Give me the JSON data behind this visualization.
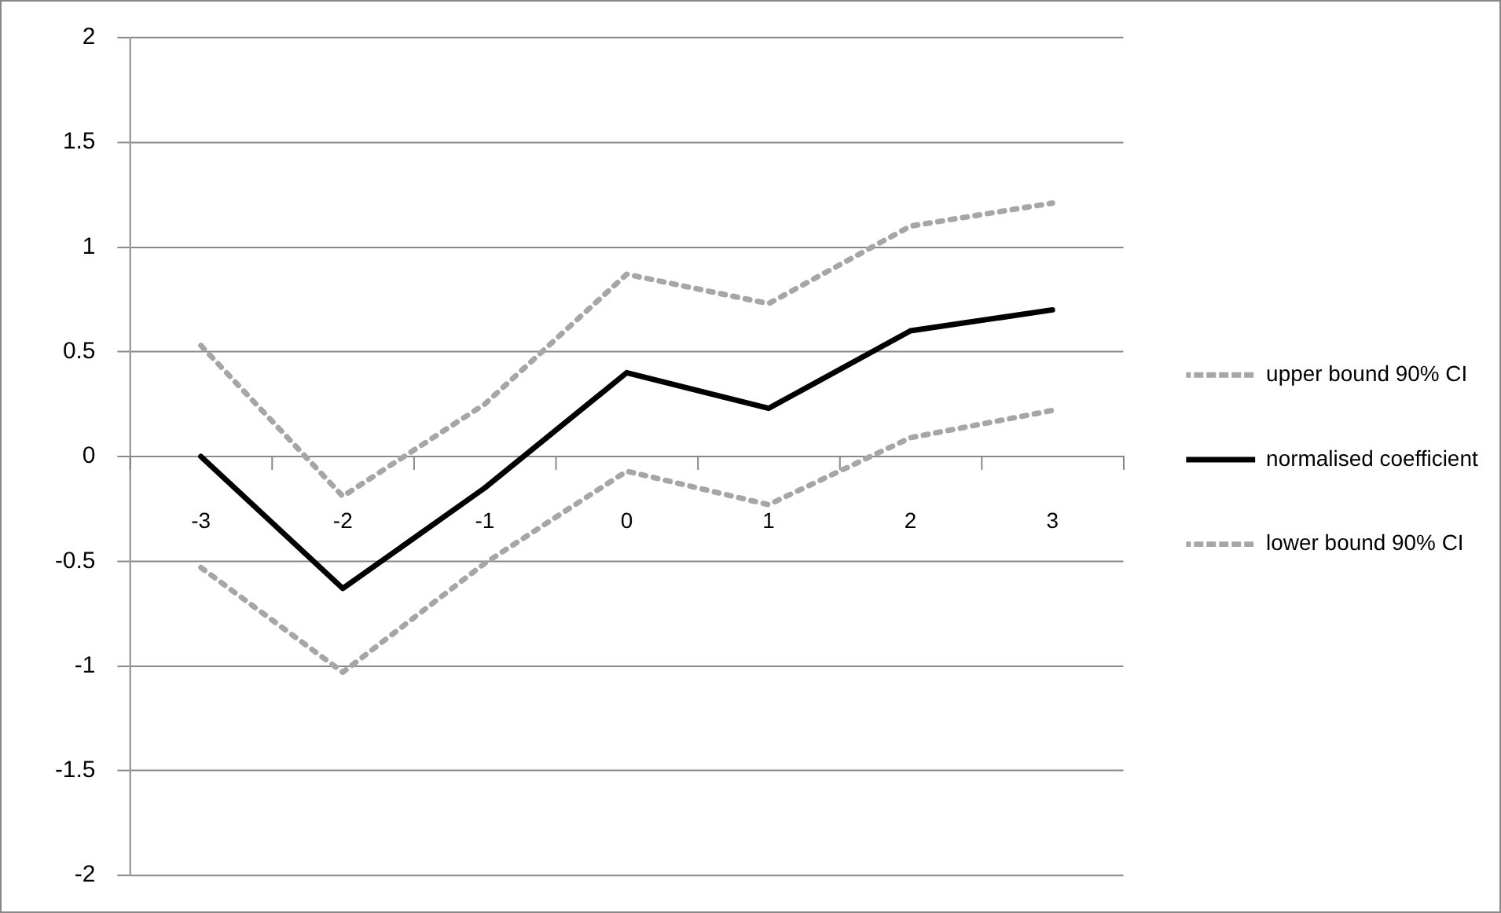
{
  "chart_data": {
    "type": "line",
    "categories": [
      "-3",
      "-2",
      "-1",
      "0",
      "1",
      "2",
      "3"
    ],
    "series": [
      {
        "name": "upper bound 90% CI",
        "color": "#a6a6a6",
        "line_style": "dotted",
        "values": [
          0.53,
          -0.19,
          0.25,
          0.87,
          0.73,
          1.1,
          1.21
        ]
      },
      {
        "name": "normalised coefficient",
        "color": "#000000",
        "line_style": "solid",
        "values": [
          0,
          -0.63,
          -0.15,
          0.4,
          0.23,
          0.6,
          0.7
        ]
      },
      {
        "name": "lower bound 90% CI",
        "color": "#a6a6a6",
        "line_style": "dotted",
        "values": [
          -0.53,
          -1.03,
          -0.51,
          -0.07,
          -0.23,
          0.09,
          0.22
        ]
      }
    ],
    "ylim": [
      -2,
      2
    ],
    "yticks": [
      -2,
      -1.5,
      -1,
      -0.5,
      0,
      0.5,
      1,
      1.5,
      2
    ],
    "grid": "y",
    "legend": "right",
    "marker": "none"
  }
}
